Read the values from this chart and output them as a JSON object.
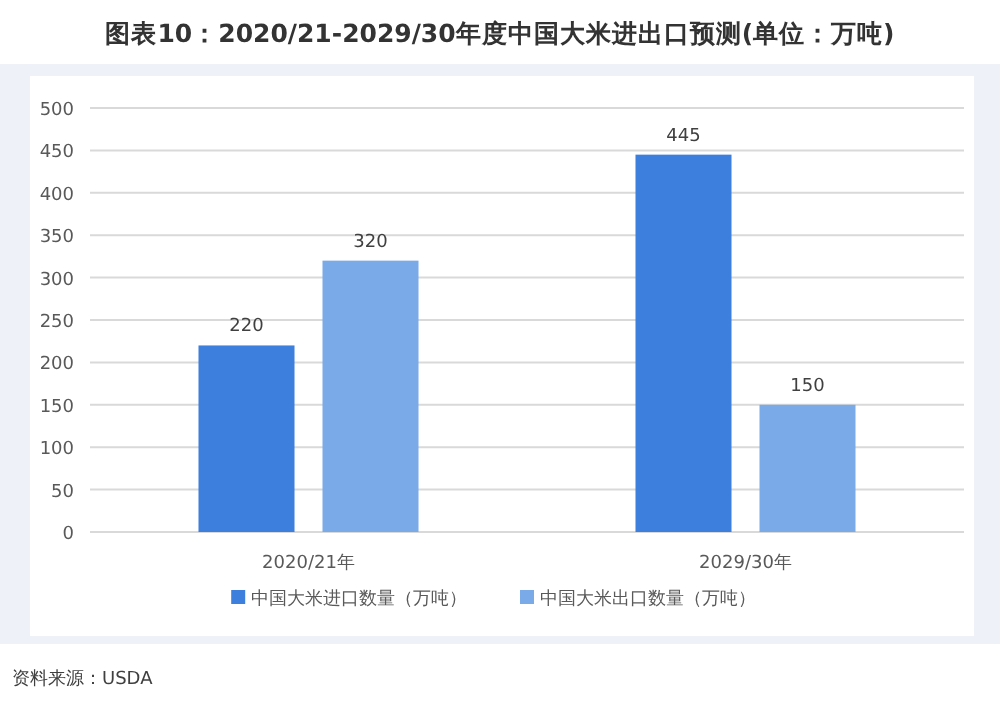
{
  "chart_data": {
    "type": "bar",
    "title": "图表10：2020/21-2029/30年度中国大米进出口预测(单位：万吨)",
    "categories": [
      "2020/21年",
      "2029/30年"
    ],
    "series": [
      {
        "name": "中国大米进口数量（万吨）",
        "color": "#3d7fdc",
        "values": [
          220,
          445
        ]
      },
      {
        "name": "中国大米出口数量（万吨）",
        "color": "#7aaae8",
        "values": [
          320,
          150
        ]
      }
    ],
    "ylim": [
      0,
      500
    ],
    "yticks": [
      0,
      50,
      100,
      150,
      200,
      250,
      300,
      350,
      400,
      450,
      500
    ],
    "grid": "y",
    "legend": "bottom",
    "data_labels": true,
    "annotations": [
      "资料来源：USDA"
    ]
  }
}
